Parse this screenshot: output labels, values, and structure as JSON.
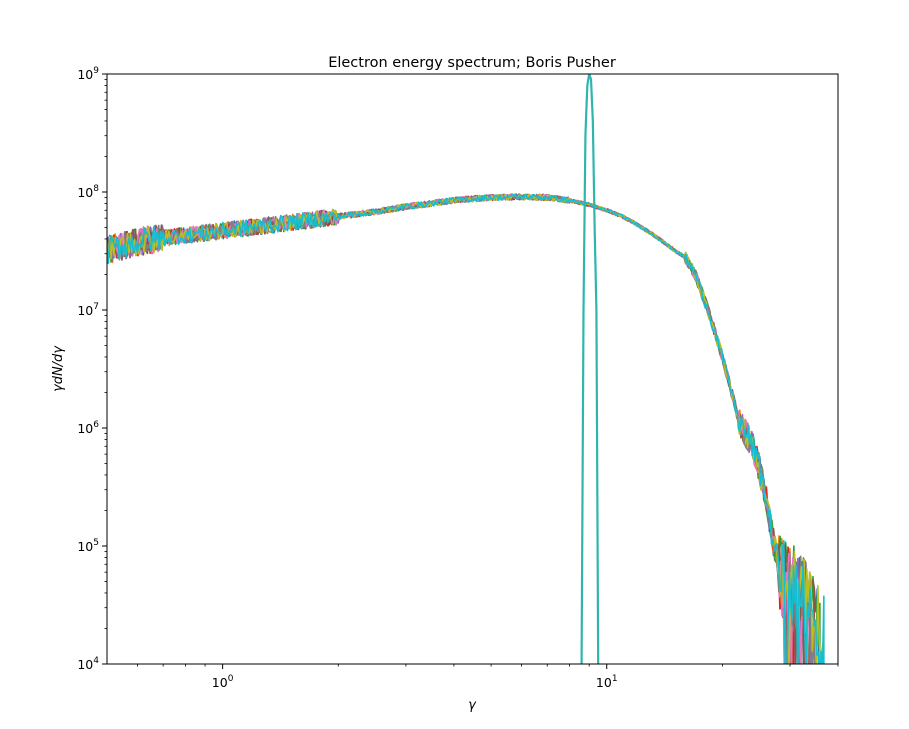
{
  "chart_data": {
    "type": "line",
    "title": "Electron energy spectrum; Boris Pusher",
    "xlabel": "γ",
    "ylabel": "γdN/dγ",
    "xscale": "log",
    "yscale": "log",
    "xlim": [
      0.5,
      40
    ],
    "ylim": [
      10000,
      1000000000
    ],
    "grid": false,
    "legend": "none",
    "x_ticks": [
      {
        "value": 1,
        "base": "10",
        "exp": "0"
      },
      {
        "value": 10,
        "base": "10",
        "exp": "1"
      }
    ],
    "y_ticks": [
      {
        "value": 10000,
        "base": "10",
        "exp": "4"
      },
      {
        "value": 100000,
        "base": "10",
        "exp": "5"
      },
      {
        "value": 1000000,
        "base": "10",
        "exp": "6"
      },
      {
        "value": 10000000,
        "base": "10",
        "exp": "7"
      },
      {
        "value": 100000000,
        "base": "10",
        "exp": "8"
      },
      {
        "value": 1000000000,
        "base": "10",
        "exp": "9"
      }
    ],
    "envelope": {
      "description": "Many overlapping noisy spectra following this common curve",
      "x": [
        0.5,
        0.6,
        0.8,
        1.0,
        1.3,
        1.7,
        2.0,
        2.5,
        3.0,
        4.0,
        5.0,
        6.0,
        7.0,
        8.0,
        9.0,
        10.0,
        11.0,
        12.0,
        13.0,
        14.0,
        15.0,
        16.0,
        17.0,
        18.0,
        19.0,
        20.0,
        21.0,
        22.0,
        23.0,
        24.0,
        25.0,
        26.0,
        27.0,
        28.0,
        29.0,
        30.0,
        31.0,
        32.0,
        33.0,
        34.0,
        35.0,
        36.0,
        37.0
      ],
      "y": [
        32000000,
        38000000,
        43000000,
        47000000,
        52000000,
        58000000,
        62000000,
        68000000,
        75000000,
        85000000,
        90000000,
        91000000,
        90000000,
        85000000,
        78000000,
        70000000,
        62000000,
        53000000,
        45000000,
        38000000,
        32000000,
        28000000,
        20000000,
        12000000,
        7000000,
        4000000,
        2200000,
        1200000,
        900000,
        700000,
        450000,
        250000,
        120000,
        70000,
        50000,
        45000,
        45000,
        40000,
        35000,
        30000,
        25000,
        20000,
        18000
      ]
    },
    "peak_series": {
      "description": "Initial monoenergetic distribution: narrow spike near gamma ~9",
      "x": [
        8.6,
        8.7,
        8.8,
        8.9,
        9.0,
        9.1,
        9.2,
        9.3,
        9.4,
        9.5
      ],
      "y": [
        10000,
        10000000,
        300000000,
        800000000,
        1000000000,
        900000000,
        400000000,
        50000000,
        10000000,
        10000
      ]
    },
    "series_colors": [
      "#1f77b4",
      "#ff7f0e",
      "#2ca02c",
      "#d62728",
      "#9467bd",
      "#8c564b",
      "#e377c2",
      "#7f7f7f",
      "#bcbd22",
      "#17becf"
    ],
    "peak_color": "#2fb5ae",
    "num_series": 10
  }
}
